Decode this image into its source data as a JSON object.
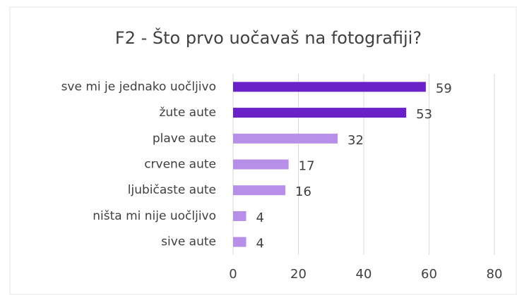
{
  "chart_data": {
    "type": "bar",
    "orientation": "horizontal",
    "title": "F2 - Što prvo uočavaš na fotografiji?",
    "categories": [
      "sve mi je jednako uočljivo",
      "žute aute",
      "plave aute",
      "crvene aute",
      "ljubičaste aute",
      "ništa mi nije uočljivo",
      "sive aute"
    ],
    "values": [
      59,
      53,
      32,
      17,
      16,
      4,
      4
    ],
    "colors": [
      "#6b21c8",
      "#6b21c8",
      "#b78ee8",
      "#b78ee8",
      "#b78ee8",
      "#b78ee8",
      "#b78ee8"
    ],
    "xlim": [
      0,
      80
    ],
    "xticks": [
      0,
      20,
      40,
      60,
      80
    ],
    "grid": true
  }
}
